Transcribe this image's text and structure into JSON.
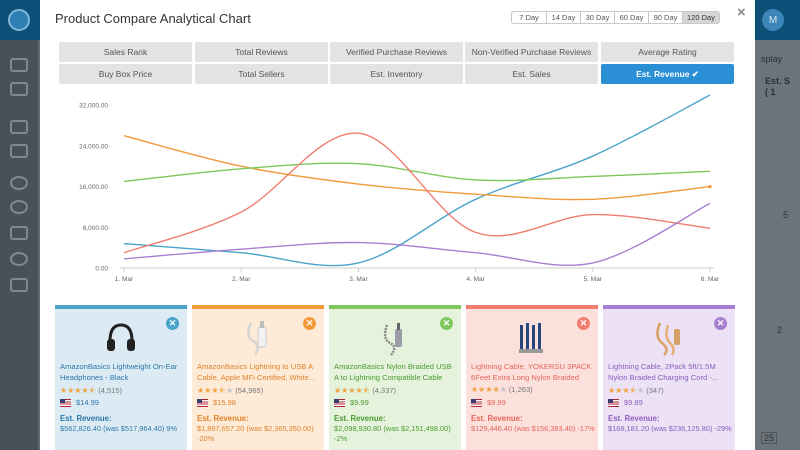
{
  "background": {
    "avatar_letter": "M",
    "right_label": "splay",
    "right_col_header": "Est. S\n( 1",
    "right_text_1": "5",
    "right_text_2": "2",
    "right_select": "25"
  },
  "modal": {
    "title": "Product Compare Analytical Chart",
    "close_glyph": "×",
    "ranges": [
      {
        "label": "7 Day",
        "active": false
      },
      {
        "label": "14 Day",
        "active": false
      },
      {
        "label": "30 Day",
        "active": false
      },
      {
        "label": "60 Day",
        "active": false
      },
      {
        "label": "90 Day",
        "active": false
      },
      {
        "label": "120 Day",
        "active": true
      }
    ],
    "metric_tabs": [
      {
        "label": "Sales Rank",
        "active": false
      },
      {
        "label": "Total Reviews",
        "active": false
      },
      {
        "label": "Verified Purchase Reviews",
        "active": false
      },
      {
        "label": "Non-Verified Purchase Reviews",
        "active": false
      },
      {
        "label": "Average Rating",
        "active": false
      },
      {
        "label": "Buy Box Price",
        "active": false
      },
      {
        "label": "Total Sellers",
        "active": false
      },
      {
        "label": "Est. Inventory",
        "active": false
      },
      {
        "label": "Est. Sales",
        "active": false
      },
      {
        "label": "Est. Revenue ✔",
        "active": true
      }
    ]
  },
  "chart_data": {
    "type": "line",
    "categories": [
      "1. Mar",
      "2. Mar",
      "3. Mar",
      "4. Mar",
      "5. Mar",
      "6. Mar"
    ],
    "y_ticks": [
      "0.00",
      "8,000.00",
      "16,000.00",
      "24,000.00",
      "32,000.00"
    ],
    "ylim": [
      0,
      34000
    ],
    "grid": false,
    "series": [
      {
        "color": "#4aa3c9",
        "values": [
          4800,
          3000,
          1000,
          13500,
          22000,
          34000
        ]
      },
      {
        "color": "#f29a3a",
        "values": [
          26000,
          20000,
          16500,
          14500,
          13500,
          16000
        ]
      },
      {
        "color": "#7dc85c",
        "values": [
          17000,
          19500,
          20500,
          17300,
          18000,
          19000
        ]
      },
      {
        "color": "#f07d70",
        "values": [
          3000,
          11000,
          26500,
          7000,
          10500,
          7800
        ]
      },
      {
        "color": "#a67fd0",
        "values": [
          1800,
          3700,
          5000,
          3000,
          1000,
          12700
        ]
      }
    ]
  },
  "products": [
    {
      "name": "AmazonBasics Lightweight On-Ear Headphones - Black",
      "stars": "★★★★⯪",
      "stars_empty": "",
      "review_count": "(4,515)",
      "price": "$14.99",
      "revenue_label": "Est. Revenue:",
      "revenue_value": "$562,826.40 (was $517,964.40) 9%",
      "accent": "#4aa3c9",
      "bg": "#dcebf3",
      "text_color": "#2d78a9",
      "icon": "headphones-icon"
    },
    {
      "name": "AmazonBasics Lightning to USB A Cable, Apple MFi Certified, White...",
      "stars": "★★★⯪",
      "stars_empty": "★",
      "review_count": "(54,965)",
      "price": "$15.98",
      "revenue_label": "Est. Revenue:",
      "revenue_value": "$1,897,657.20 (was $2,365,350.00) -20%",
      "accent": "#f29a3a",
      "bg": "#fdebd8",
      "text_color": "#e0822a",
      "icon": "white-cable-icon"
    },
    {
      "name": "AmazonBasics Nylon Braided USB A to Lightning Compatible Cable",
      "stars": "★★★★⯪",
      "stars_empty": "",
      "review_count": "(4,337)",
      "price": "$9.99",
      "revenue_label": "Est. Revenue:",
      "revenue_value": "$2,098,930.80 (was $2,151,498.00) -2%",
      "accent": "#7dc85c",
      "bg": "#e5f3dc",
      "text_color": "#4c9a33",
      "icon": "braided-cable-icon"
    },
    {
      "name": "Lightning Cable, YOKERSU 3PACK 6Feet Extra Long Nylon Braided",
      "stars": "★★★★",
      "stars_empty": "★",
      "review_count": "(1,263)",
      "price": "$9.99",
      "revenue_label": "Est. Revenue:",
      "revenue_value": "$129,446.40 (was $156,383.40) -17%",
      "accent": "#f07d70",
      "bg": "#fce0dc",
      "text_color": "#e4665a",
      "icon": "cable-pack-icon"
    },
    {
      "name": "Lightning Cable, 2Pack 5ft/1.5M Nylon Braided Charging Cord -...",
      "stars": "★★★⯪",
      "stars_empty": "★",
      "review_count": "(347)",
      "price": "$9.89",
      "revenue_label": "Est. Revenue:",
      "revenue_value": "$168,181.20 (was $236,125.80) -29%",
      "accent": "#a67fd0",
      "bg": "#ece1f5",
      "text_color": "#8a5fbf",
      "icon": "gold-cable-icon"
    }
  ]
}
